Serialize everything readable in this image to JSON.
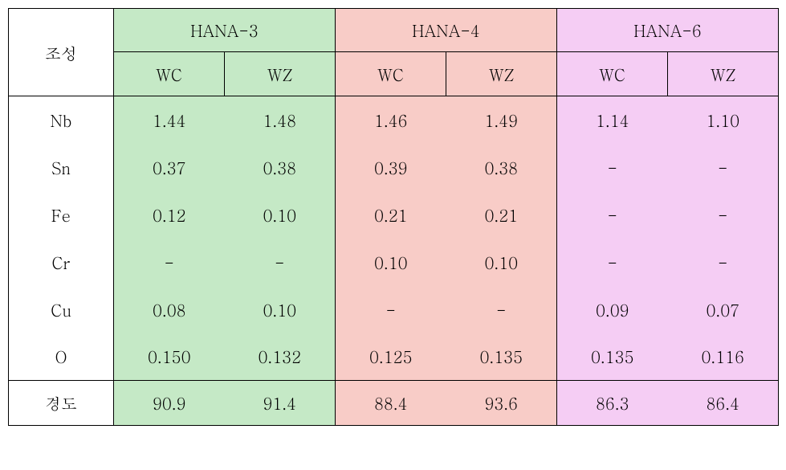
{
  "colors": {
    "group1_bg": "#c5e9c6",
    "group2_bg": "#f8ccc7",
    "group3_bg": "#f5cdf4",
    "label_bg": "#ffffff",
    "border": "#000000",
    "text": "#000000"
  },
  "fontsize": 20,
  "header": {
    "row_label": "조성",
    "groups": [
      {
        "title": "HANA-3",
        "subs": [
          "WC",
          "WZ"
        ]
      },
      {
        "title": "HANA-4",
        "subs": [
          "WC",
          "WZ"
        ]
      },
      {
        "title": "HANA-6",
        "subs": [
          "WC",
          "WZ"
        ]
      }
    ]
  },
  "rows": [
    {
      "label": "Nb",
      "values": [
        "1.44",
        "1.48",
        "1.46",
        "1.49",
        "1.14",
        "1.10"
      ]
    },
    {
      "label": "Sn",
      "values": [
        "0.37",
        "0.38",
        "0.39",
        "0.38",
        "-",
        "-"
      ]
    },
    {
      "label": "Fe",
      "values": [
        "0.12",
        "0.10",
        "0.21",
        "0.21",
        "-",
        "-"
      ]
    },
    {
      "label": "Cr",
      "values": [
        "-",
        "-",
        "0.10",
        "0.10",
        "-",
        "-"
      ]
    },
    {
      "label": "Cu",
      "values": [
        "0.08",
        "0.10",
        "-",
        "-",
        "0.09",
        "0.07"
      ]
    },
    {
      "label": "O",
      "values": [
        "0.150",
        "0.132",
        "0.125",
        "0.135",
        "0.135",
        "0.116"
      ]
    }
  ],
  "hardness": {
    "label": "경도",
    "values": [
      "90.9",
      "91.4",
      "88.4",
      "93.6",
      "86.3",
      "86.4"
    ]
  }
}
